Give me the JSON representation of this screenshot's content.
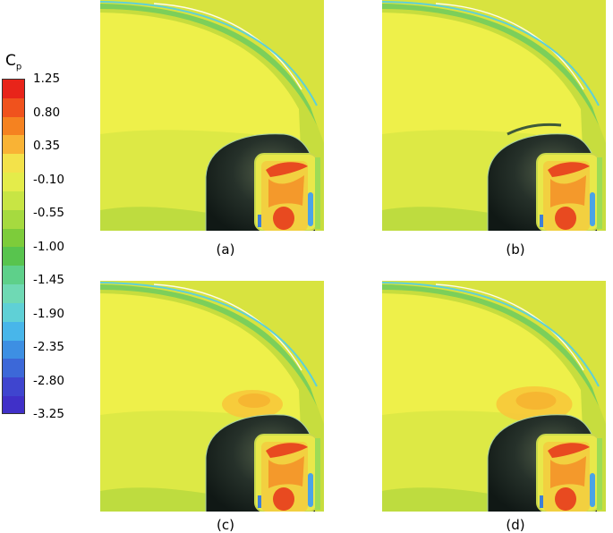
{
  "legend": {
    "symbol": "C",
    "subscript": "p",
    "ticks": [
      "1.25",
      "0.80",
      "0.35",
      "-0.10",
      "-0.55",
      "-1.00",
      "-1.45",
      "-1.90",
      "-2.35",
      "-2.80",
      "-3.25"
    ],
    "colors": [
      "#e8241a",
      "#f0521d",
      "#f58220",
      "#f9b335",
      "#f3e24a",
      "#e4ec4a",
      "#c8e544",
      "#a6da3f",
      "#7dcc3a",
      "#58c44e",
      "#5ed08a",
      "#6fd9b4",
      "#5fd0d6",
      "#48b6ea",
      "#3d8fe3",
      "#3c68d8",
      "#3f45cf",
      "#4030c8"
    ]
  },
  "panels": [
    {
      "id": "a",
      "caption": "(a)",
      "variant": 0
    },
    {
      "id": "b",
      "caption": "(b)",
      "variant": 1
    },
    {
      "id": "c",
      "caption": "(c)",
      "variant": 2
    },
    {
      "id": "d",
      "caption": "(d)",
      "variant": 3
    }
  ]
}
